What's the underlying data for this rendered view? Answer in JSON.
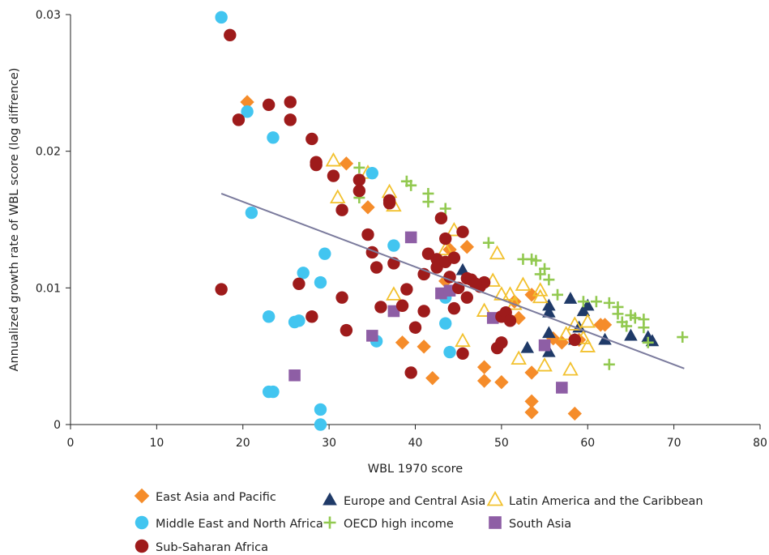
{
  "chart_data": {
    "type": "scatter",
    "title": "",
    "xlabel": "WBL 1970 score",
    "ylabel": "Annualized growth rate of WBL score (log diffrence)",
    "xlim": [
      0,
      80
    ],
    "ylim": [
      0,
      0.03
    ],
    "x_ticks": [
      "0",
      "10",
      "20",
      "30",
      "40",
      "50",
      "60",
      "70",
      "80"
    ],
    "y_ticks": [
      "0",
      "0.01",
      "0.02",
      "0.03"
    ],
    "x_tick_values": [
      0,
      10,
      20,
      30,
      40,
      50,
      60,
      70,
      80
    ],
    "y_tick_values": [
      0,
      0.01,
      0.02,
      0.03
    ],
    "grid": false,
    "legend_position": "bottom",
    "trendline": {
      "x": [
        17.5,
        71.2
      ],
      "y": [
        0.0169,
        0.0041
      ],
      "color": "#7b7b9d"
    },
    "series": [
      {
        "name": "East Asia and Pacific",
        "marker": "diamond",
        "color": "#f58c2a",
        "points": [
          [
            20.5,
            0.0236
          ],
          [
            32.0,
            0.0191
          ],
          [
            34.5,
            0.0159
          ],
          [
            38.5,
            0.006
          ],
          [
            41.0,
            0.0057
          ],
          [
            42.0,
            0.0034
          ],
          [
            43.5,
            0.0105
          ],
          [
            44.0,
            0.0128
          ],
          [
            46.0,
            0.013
          ],
          [
            48.0,
            0.0042
          ],
          [
            48.0,
            0.0032
          ],
          [
            50.0,
            0.0031
          ],
          [
            51.5,
            0.009
          ],
          [
            52.0,
            0.0078
          ],
          [
            53.5,
            0.0095
          ],
          [
            53.5,
            0.0038
          ],
          [
            53.5,
            0.0017
          ],
          [
            53.5,
            0.0009
          ],
          [
            56.0,
            0.0063
          ],
          [
            57.0,
            0.006
          ],
          [
            58.5,
            0.0008
          ],
          [
            59.0,
            0.0062
          ],
          [
            61.5,
            0.0073
          ],
          [
            62.0,
            0.0073
          ]
        ]
      },
      {
        "name": "Europe and Central Asia",
        "marker": "triangle",
        "color": "#1f3a68",
        "points": [
          [
            45.5,
            0.0113
          ],
          [
            53.0,
            0.0056
          ],
          [
            55.5,
            0.0087
          ],
          [
            55.5,
            0.0082
          ],
          [
            55.5,
            0.0067
          ],
          [
            55.5,
            0.0053
          ],
          [
            58.0,
            0.0092
          ],
          [
            58.5,
            0.0062
          ],
          [
            59.0,
            0.0071
          ],
          [
            59.5,
            0.0083
          ],
          [
            60.0,
            0.0087
          ],
          [
            62.0,
            0.0062
          ],
          [
            65.0,
            0.0065
          ],
          [
            67.0,
            0.0064
          ],
          [
            67.5,
            0.0061
          ]
        ]
      },
      {
        "name": "Latin America and the Caribbean",
        "marker": "triangle-open",
        "color": "#f2c12e",
        "points": [
          [
            30.5,
            0.0193
          ],
          [
            31.0,
            0.0166
          ],
          [
            34.5,
            0.0184
          ],
          [
            37.0,
            0.017
          ],
          [
            37.5,
            0.016
          ],
          [
            37.5,
            0.0095
          ],
          [
            43.5,
            0.0128
          ],
          [
            44.5,
            0.0142
          ],
          [
            45.5,
            0.0061
          ],
          [
            48.0,
            0.0083
          ],
          [
            49.0,
            0.0105
          ],
          [
            49.5,
            0.0125
          ],
          [
            50.0,
            0.0095
          ],
          [
            51.0,
            0.0095
          ],
          [
            51.5,
            0.0088
          ],
          [
            52.0,
            0.0048
          ],
          [
            52.5,
            0.0102
          ],
          [
            54.5,
            0.0098
          ],
          [
            54.5,
            0.0093
          ],
          [
            55.0,
            0.0043
          ],
          [
            57.5,
            0.0066
          ],
          [
            58.0,
            0.004
          ],
          [
            58.5,
            0.0073
          ],
          [
            59.5,
            0.0063
          ],
          [
            60.0,
            0.0075
          ],
          [
            60.0,
            0.0057
          ]
        ]
      },
      {
        "name": "Middle East and North Africa",
        "marker": "circle",
        "color": "#42c5f0",
        "points": [
          [
            17.5,
            0.0298
          ],
          [
            20.5,
            0.0229
          ],
          [
            21.0,
            0.0155
          ],
          [
            23.5,
            0.021
          ],
          [
            23.0,
            0.0079
          ],
          [
            23.0,
            0.0024
          ],
          [
            23.5,
            0.0024
          ],
          [
            26.0,
            0.0075
          ],
          [
            27.0,
            0.0111
          ],
          [
            26.5,
            0.0076
          ],
          [
            29.0,
            0.0104
          ],
          [
            29.5,
            0.0125
          ],
          [
            29.0,
            0.0011
          ],
          [
            29.0,
            0.0
          ],
          [
            35.0,
            0.0184
          ],
          [
            37.5,
            0.0131
          ],
          [
            35.5,
            0.0061
          ],
          [
            43.5,
            0.0093
          ],
          [
            43.5,
            0.0074
          ],
          [
            44.0,
            0.0053
          ]
        ]
      },
      {
        "name": "OECD high income",
        "marker": "plus",
        "color": "#92c950",
        "points": [
          [
            33.5,
            0.0188
          ],
          [
            33.5,
            0.0166
          ],
          [
            39.0,
            0.0178
          ],
          [
            39.5,
            0.0175
          ],
          [
            41.5,
            0.0169
          ],
          [
            41.5,
            0.0163
          ],
          [
            43.5,
            0.0158
          ],
          [
            48.5,
            0.0133
          ],
          [
            52.5,
            0.0121
          ],
          [
            53.5,
            0.0121
          ],
          [
            54.0,
            0.012
          ],
          [
            55.0,
            0.0114
          ],
          [
            54.5,
            0.011
          ],
          [
            55.5,
            0.0106
          ],
          [
            56.5,
            0.0095
          ],
          [
            59.5,
            0.009
          ],
          [
            61.0,
            0.009
          ],
          [
            62.5,
            0.0089
          ],
          [
            63.5,
            0.0086
          ],
          [
            63.5,
            0.0081
          ],
          [
            65.0,
            0.008
          ],
          [
            65.5,
            0.0078
          ],
          [
            66.5,
            0.0077
          ],
          [
            64.0,
            0.0075
          ],
          [
            64.5,
            0.0072
          ],
          [
            66.5,
            0.0071
          ],
          [
            67.0,
            0.006
          ],
          [
            62.5,
            0.0044
          ],
          [
            71.0,
            0.0064
          ]
        ]
      },
      {
        "name": "South Asia",
        "marker": "square",
        "color": "#8e5ea5",
        "points": [
          [
            26.0,
            0.0036
          ],
          [
            35.0,
            0.0065
          ],
          [
            37.5,
            0.0083
          ],
          [
            39.5,
            0.0137
          ],
          [
            43.0,
            0.0096
          ],
          [
            44.0,
            0.0098
          ],
          [
            49.0,
            0.0078
          ],
          [
            55.0,
            0.0058
          ],
          [
            57.0,
            0.0027
          ]
        ]
      },
      {
        "name": "Sub-Saharan Africa",
        "marker": "circle",
        "color": "#9e1b1b",
        "points": [
          [
            18.5,
            0.0285
          ],
          [
            19.5,
            0.0223
          ],
          [
            23.0,
            0.0234
          ],
          [
            25.5,
            0.0236
          ],
          [
            25.5,
            0.0223
          ],
          [
            17.5,
            0.0099
          ],
          [
            26.5,
            0.0103
          ],
          [
            28.0,
            0.0209
          ],
          [
            28.5,
            0.0192
          ],
          [
            28.5,
            0.019
          ],
          [
            30.5,
            0.0182
          ],
          [
            31.5,
            0.0157
          ],
          [
            28.0,
            0.0079
          ],
          [
            31.5,
            0.0093
          ],
          [
            32.0,
            0.0069
          ],
          [
            33.5,
            0.0179
          ],
          [
            33.5,
            0.0171
          ],
          [
            34.5,
            0.0139
          ],
          [
            35.0,
            0.0126
          ],
          [
            35.5,
            0.0115
          ],
          [
            36.0,
            0.0086
          ],
          [
            37.0,
            0.0164
          ],
          [
            37.0,
            0.0162
          ],
          [
            37.5,
            0.0118
          ],
          [
            38.5,
            0.0087
          ],
          [
            39.0,
            0.0099
          ],
          [
            39.5,
            0.0038
          ],
          [
            40.0,
            0.0071
          ],
          [
            41.0,
            0.011
          ],
          [
            41.0,
            0.0083
          ],
          [
            42.5,
            0.0121
          ],
          [
            42.5,
            0.0115
          ],
          [
            43.0,
            0.0151
          ],
          [
            43.5,
            0.0136
          ],
          [
            43.5,
            0.0119
          ],
          [
            44.5,
            0.0122
          ],
          [
            44.0,
            0.0108
          ],
          [
            44.5,
            0.0085
          ],
          [
            45.0,
            0.01
          ],
          [
            45.5,
            0.0141
          ],
          [
            45.5,
            0.0052
          ],
          [
            46.0,
            0.0107
          ],
          [
            46.0,
            0.0093
          ],
          [
            46.5,
            0.0106
          ],
          [
            47.5,
            0.0101
          ],
          [
            48.0,
            0.0104
          ],
          [
            49.5,
            0.0056
          ],
          [
            50.0,
            0.0079
          ],
          [
            50.0,
            0.006
          ],
          [
            50.5,
            0.0082
          ],
          [
            51.0,
            0.0076
          ],
          [
            58.5,
            0.0062
          ],
          [
            47.0,
            0.0103
          ],
          [
            41.5,
            0.0125
          ]
        ]
      }
    ]
  }
}
